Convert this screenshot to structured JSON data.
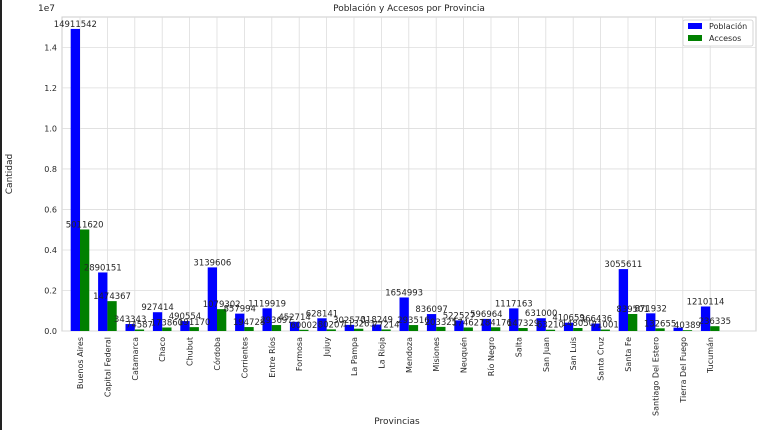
{
  "chart_data": {
    "type": "bar",
    "title": "Población y Accesos por Provincia",
    "xlabel": "Provincias",
    "ylabel": "Cantidad",
    "y_multiplier_label": "1e7",
    "ylim": [
      0,
      15500000
    ],
    "y_ticks": [
      0,
      2000000,
      4000000,
      6000000,
      8000000,
      10000000,
      12000000,
      14000000
    ],
    "y_tick_labels": [
      "0.0",
      "0.2",
      "0.4",
      "0.6",
      "0.8",
      "1.0",
      "1.2",
      "1.4"
    ],
    "grid": true,
    "legend_position": "top-right",
    "categories": [
      "Buenos Aires",
      "Capital Federal",
      "Catamarca",
      "Chaco",
      "Chubut",
      "Córdoba",
      "Corrientes",
      "Entre Ríos",
      "Formosa",
      "Jujuy",
      "La Pampa",
      "La Rioja",
      "Mendoza",
      "Misiones",
      "Neuquén",
      "Río Negro",
      "Salta",
      "San Juan",
      "San Luis",
      "Santa Cruz",
      "Santa Fe",
      "Santiago Del Estero",
      "Tierra Del Fuego",
      "Tucumán"
    ],
    "series": [
      {
        "name": "Población",
        "color": "#0000ff",
        "values": [
          14911542,
          2890151,
          343343,
          927414,
          490554,
          3139606,
          857994,
          1119919,
          452714,
          628141,
          302570,
          318249,
          1654993,
          836097,
          522527,
          596964,
          1117163,
          631000,
          410659,
          366436,
          3055611,
          871932,
          165000,
          1210114
        ],
        "labels": [
          "14911542",
          "2890151",
          "343343",
          "927414",
          "490554",
          "3139606",
          "857994",
          "1119919",
          "452714",
          "628141",
          "302570",
          "318249",
          "1654993",
          "836097",
          "522527",
          "596964",
          "1117163",
          "631000",
          "410659",
          "366436",
          "3055611",
          "871932",
          "",
          "1210114"
        ]
      },
      {
        "name": "Accesos",
        "color": "#008000",
        "values": [
          5011620,
          1474367,
          74587,
          173860,
          191170,
          1079302,
          194728,
          293697,
          60002,
          80207,
          113263,
          77214,
          293516,
          203325,
          174627,
          184176,
          147329,
          63210,
          148050,
          71001,
          839501,
          132655,
          40389,
          236335
        ],
        "labels": [
          "5011620",
          "1474367",
          "74587",
          "173860",
          "191170",
          "1079302",
          "194728",
          "293697",
          "60002",
          "80207",
          "113263",
          "77214",
          "293516",
          "203325",
          "174627",
          "184176",
          "147329",
          "63210",
          "148050",
          "71001",
          "839501",
          "132655",
          "40389",
          "236335"
        ]
      }
    ]
  }
}
